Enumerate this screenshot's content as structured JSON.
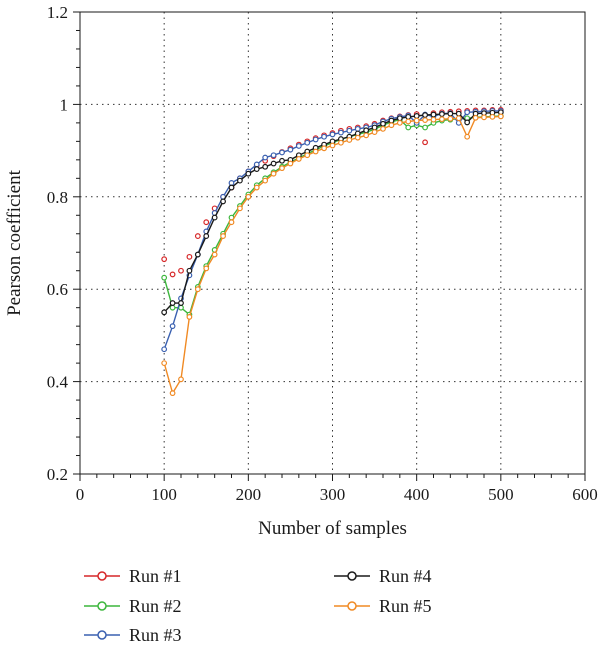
{
  "chart_data": {
    "type": "line",
    "xlabel": "Number of samples",
    "ylabel": "Pearson coefficient",
    "xlim": [
      0,
      600
    ],
    "ylim": [
      0.2,
      1.2
    ],
    "xticks": [
      0,
      100,
      200,
      300,
      400,
      500,
      600
    ],
    "yticks": [
      0.2,
      0.4,
      0.6,
      0.8,
      1,
      1.2
    ],
    "xtick_labels": [
      "0",
      "100",
      "200",
      "300",
      "400",
      "500",
      "600"
    ],
    "ytick_labels": [
      "0.2",
      "0.4",
      "0.6",
      "0.8",
      "1",
      "1.2"
    ],
    "grid": "dotted",
    "legend_position": "bottom",
    "series": [
      {
        "name": "Run #1",
        "color": "#d62728",
        "style": "markers",
        "x": [
          100,
          110,
          120,
          130,
          140,
          150,
          160,
          170,
          180,
          190,
          200,
          210,
          220,
          230,
          240,
          250,
          260,
          270,
          280,
          290,
          300,
          310,
          320,
          330,
          340,
          350,
          360,
          370,
          380,
          390,
          400,
          410,
          420,
          430,
          440,
          450,
          460,
          470,
          480,
          490,
          500
        ],
        "y": [
          0.665,
          0.632,
          0.64,
          0.67,
          0.715,
          0.745,
          0.775,
          0.8,
          0.82,
          0.84,
          0.855,
          0.868,
          0.878,
          0.888,
          0.897,
          0.905,
          0.913,
          0.92,
          0.927,
          0.933,
          0.938,
          0.943,
          0.947,
          0.95,
          0.953,
          0.958,
          0.965,
          0.97,
          0.974,
          0.977,
          0.979,
          0.918,
          0.981,
          0.983,
          0.984,
          0.985,
          0.986,
          0.987,
          0.987,
          0.988,
          0.988
        ]
      },
      {
        "name": "Run #2",
        "color": "#3cb63c",
        "style": "line-markers",
        "x": [
          100,
          110,
          120,
          130,
          140,
          150,
          160,
          170,
          180,
          190,
          200,
          210,
          220,
          230,
          240,
          250,
          260,
          270,
          280,
          290,
          300,
          310,
          320,
          330,
          340,
          350,
          360,
          370,
          380,
          390,
          400,
          410,
          420,
          430,
          440,
          450,
          460,
          470,
          480,
          490,
          500
        ],
        "y": [
          0.625,
          0.56,
          0.56,
          0.545,
          0.605,
          0.65,
          0.685,
          0.72,
          0.755,
          0.78,
          0.805,
          0.825,
          0.84,
          0.853,
          0.865,
          0.875,
          0.884,
          0.893,
          0.902,
          0.91,
          0.917,
          0.924,
          0.93,
          0.935,
          0.94,
          0.946,
          0.955,
          0.962,
          0.967,
          0.95,
          0.955,
          0.95,
          0.96,
          0.965,
          0.967,
          0.969,
          0.97,
          0.972,
          0.973,
          0.974,
          0.975
        ]
      },
      {
        "name": "Run #3",
        "color": "#3a60b0",
        "style": "line-markers",
        "x": [
          100,
          110,
          120,
          130,
          140,
          150,
          160,
          170,
          180,
          190,
          200,
          210,
          220,
          230,
          240,
          250,
          260,
          270,
          280,
          290,
          300,
          310,
          320,
          330,
          340,
          350,
          360,
          370,
          380,
          390,
          400,
          410,
          420,
          430,
          440,
          450,
          460,
          470,
          480,
          490,
          500
        ],
        "y": [
          0.47,
          0.52,
          0.58,
          0.63,
          0.675,
          0.725,
          0.765,
          0.8,
          0.83,
          0.84,
          0.855,
          0.87,
          0.885,
          0.89,
          0.896,
          0.902,
          0.91,
          0.917,
          0.924,
          0.93,
          0.935,
          0.939,
          0.943,
          0.947,
          0.95,
          0.955,
          0.963,
          0.969,
          0.973,
          0.976,
          0.96,
          0.978,
          0.974,
          0.98,
          0.981,
          0.96,
          0.983,
          0.984,
          0.985,
          0.986,
          0.986
        ]
      },
      {
        "name": "Run #4",
        "color": "#1a1a1a",
        "style": "line-markers",
        "x": [
          100,
          110,
          120,
          130,
          140,
          150,
          160,
          170,
          180,
          190,
          200,
          210,
          220,
          230,
          240,
          250,
          260,
          270,
          280,
          290,
          300,
          310,
          320,
          330,
          340,
          350,
          360,
          370,
          380,
          390,
          400,
          410,
          420,
          430,
          440,
          450,
          460,
          470,
          480,
          490,
          500
        ],
        "y": [
          0.55,
          0.57,
          0.57,
          0.64,
          0.675,
          0.715,
          0.755,
          0.79,
          0.82,
          0.835,
          0.85,
          0.86,
          0.865,
          0.872,
          0.878,
          0.88,
          0.89,
          0.898,
          0.906,
          0.913,
          0.92,
          0.925,
          0.93,
          0.937,
          0.944,
          0.95,
          0.958,
          0.965,
          0.97,
          0.973,
          0.975,
          0.977,
          0.978,
          0.979,
          0.98,
          0.98,
          0.961,
          0.98,
          0.981,
          0.982,
          0.983
        ]
      },
      {
        "name": "Run #5",
        "color": "#f08a24",
        "style": "line-markers",
        "x": [
          100,
          110,
          120,
          130,
          140,
          150,
          160,
          170,
          180,
          190,
          200,
          210,
          220,
          230,
          240,
          250,
          260,
          270,
          280,
          290,
          300,
          310,
          320,
          330,
          340,
          350,
          360,
          370,
          380,
          390,
          400,
          410,
          420,
          430,
          440,
          450,
          460,
          470,
          480,
          490,
          500
        ],
        "y": [
          0.44,
          0.375,
          0.405,
          0.54,
          0.6,
          0.645,
          0.675,
          0.715,
          0.745,
          0.775,
          0.8,
          0.82,
          0.835,
          0.85,
          0.862,
          0.872,
          0.882,
          0.89,
          0.898,
          0.905,
          0.911,
          0.917,
          0.923,
          0.928,
          0.933,
          0.94,
          0.947,
          0.955,
          0.96,
          0.963,
          0.965,
          0.966,
          0.967,
          0.968,
          0.969,
          0.97,
          0.93,
          0.971,
          0.972,
          0.973,
          0.974
        ]
      }
    ]
  }
}
